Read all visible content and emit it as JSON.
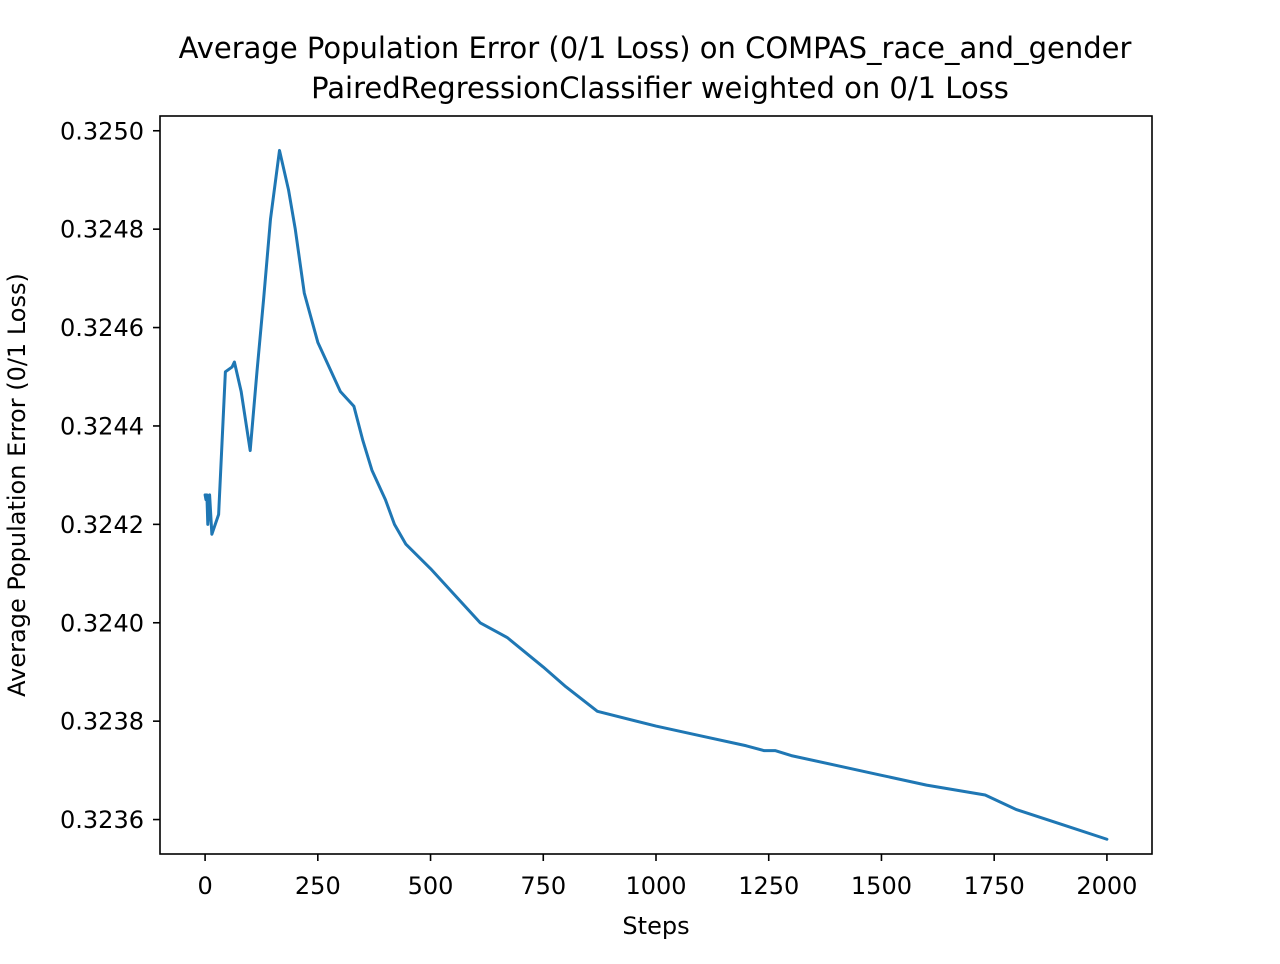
{
  "chart_data": {
    "type": "line",
    "title": "Average Population Error (0/1 Loss) on COMPAS_race_and_gender",
    "subtitle": "PairedRegressionClassifier weighted on 0/1 Loss",
    "xlabel": "Steps",
    "ylabel": "Average Population Error (0/1 Loss)",
    "xlim": [
      -100,
      2100
    ],
    "ylim": [
      0.32353,
      0.32503
    ],
    "grid": false,
    "xticks": [
      0,
      250,
      500,
      750,
      1000,
      1250,
      1500,
      1750,
      2000
    ],
    "xtick_labels": [
      "0",
      "250",
      "500",
      "750",
      "1000",
      "1250",
      "1500",
      "1750",
      "2000"
    ],
    "yticks": [
      0.3236,
      0.3238,
      0.324,
      0.3242,
      0.3244,
      0.3246,
      0.3248,
      0.325
    ],
    "ytick_labels": [
      "0.3236",
      "0.3238",
      "0.3240",
      "0.3242",
      "0.3244",
      "0.3246",
      "0.3248",
      "0.3250"
    ],
    "series": [
      {
        "color": "#1f77b4",
        "x": [
          0,
          2,
          4,
          6,
          8,
          10,
          15,
          30,
          45,
          60,
          65,
          80,
          100,
          115,
          130,
          145,
          165,
          185,
          200,
          220,
          250,
          300,
          330,
          350,
          370,
          400,
          420,
          445,
          500,
          550,
          610,
          670,
          750,
          800,
          870,
          1000,
          1100,
          1200,
          1240,
          1265,
          1300,
          1400,
          1500,
          1600,
          1730,
          1800,
          1900,
          2000
        ],
        "y": [
          0.32426,
          0.32425,
          0.32426,
          0.3242,
          0.32423,
          0.32426,
          0.32418,
          0.32422,
          0.32451,
          0.32452,
          0.32453,
          0.32447,
          0.32435,
          0.32451,
          0.32466,
          0.32482,
          0.32496,
          0.32488,
          0.3248,
          0.32467,
          0.32457,
          0.32447,
          0.32444,
          0.32437,
          0.32431,
          0.32425,
          0.3242,
          0.32416,
          0.32411,
          0.32406,
          0.324,
          0.32397,
          0.32391,
          0.32387,
          0.32382,
          0.32379,
          0.32377,
          0.32375,
          0.32374,
          0.32374,
          0.32373,
          0.32371,
          0.32369,
          0.32367,
          0.32365,
          0.32362,
          0.32359,
          0.32356
        ]
      }
    ]
  }
}
